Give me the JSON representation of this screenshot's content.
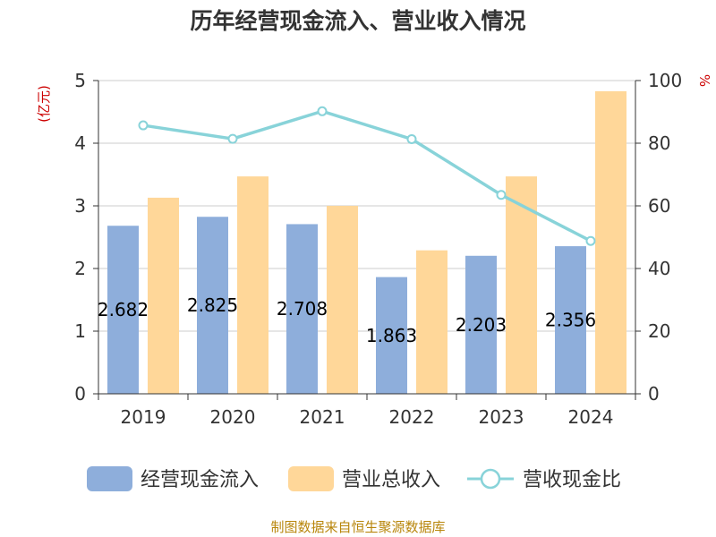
{
  "chart_data": {
    "type": "bar",
    "title": "历年经营现金流入、营业收入情况",
    "categories": [
      "2019",
      "2020",
      "2021",
      "2022",
      "2023",
      "2024"
    ],
    "series": [
      {
        "name": "经营现金流入",
        "axis": "left",
        "type": "bar",
        "color": "#8eaedb",
        "values": [
          2.682,
          2.825,
          2.708,
          1.863,
          2.203,
          2.356
        ],
        "data_labels": [
          "2.682",
          "2.825",
          "2.708",
          "1.863",
          "2.203",
          "2.356"
        ]
      },
      {
        "name": "营业总收入",
        "axis": "left",
        "type": "bar",
        "color": "#ffd799",
        "values": [
          3.13,
          3.47,
          3.0,
          2.29,
          3.47,
          4.83
        ]
      },
      {
        "name": "营收现金比",
        "axis": "right",
        "type": "line",
        "color": "#88d3d9",
        "values": [
          85.7,
          81.4,
          90.2,
          81.3,
          63.5,
          48.8
        ]
      }
    ],
    "y_left": {
      "unit": "(亿元)",
      "min": 0,
      "max": 5,
      "ticks": [
        "0",
        "1",
        "2",
        "3",
        "4",
        "5"
      ]
    },
    "y_right": {
      "unit": "%",
      "min": 0,
      "max": 100,
      "ticks": [
        "0",
        "20",
        "40",
        "60",
        "80",
        "100"
      ]
    },
    "grid": true,
    "legend_position": "bottom"
  },
  "source_text": "制图数据来自恒生聚源数据库"
}
